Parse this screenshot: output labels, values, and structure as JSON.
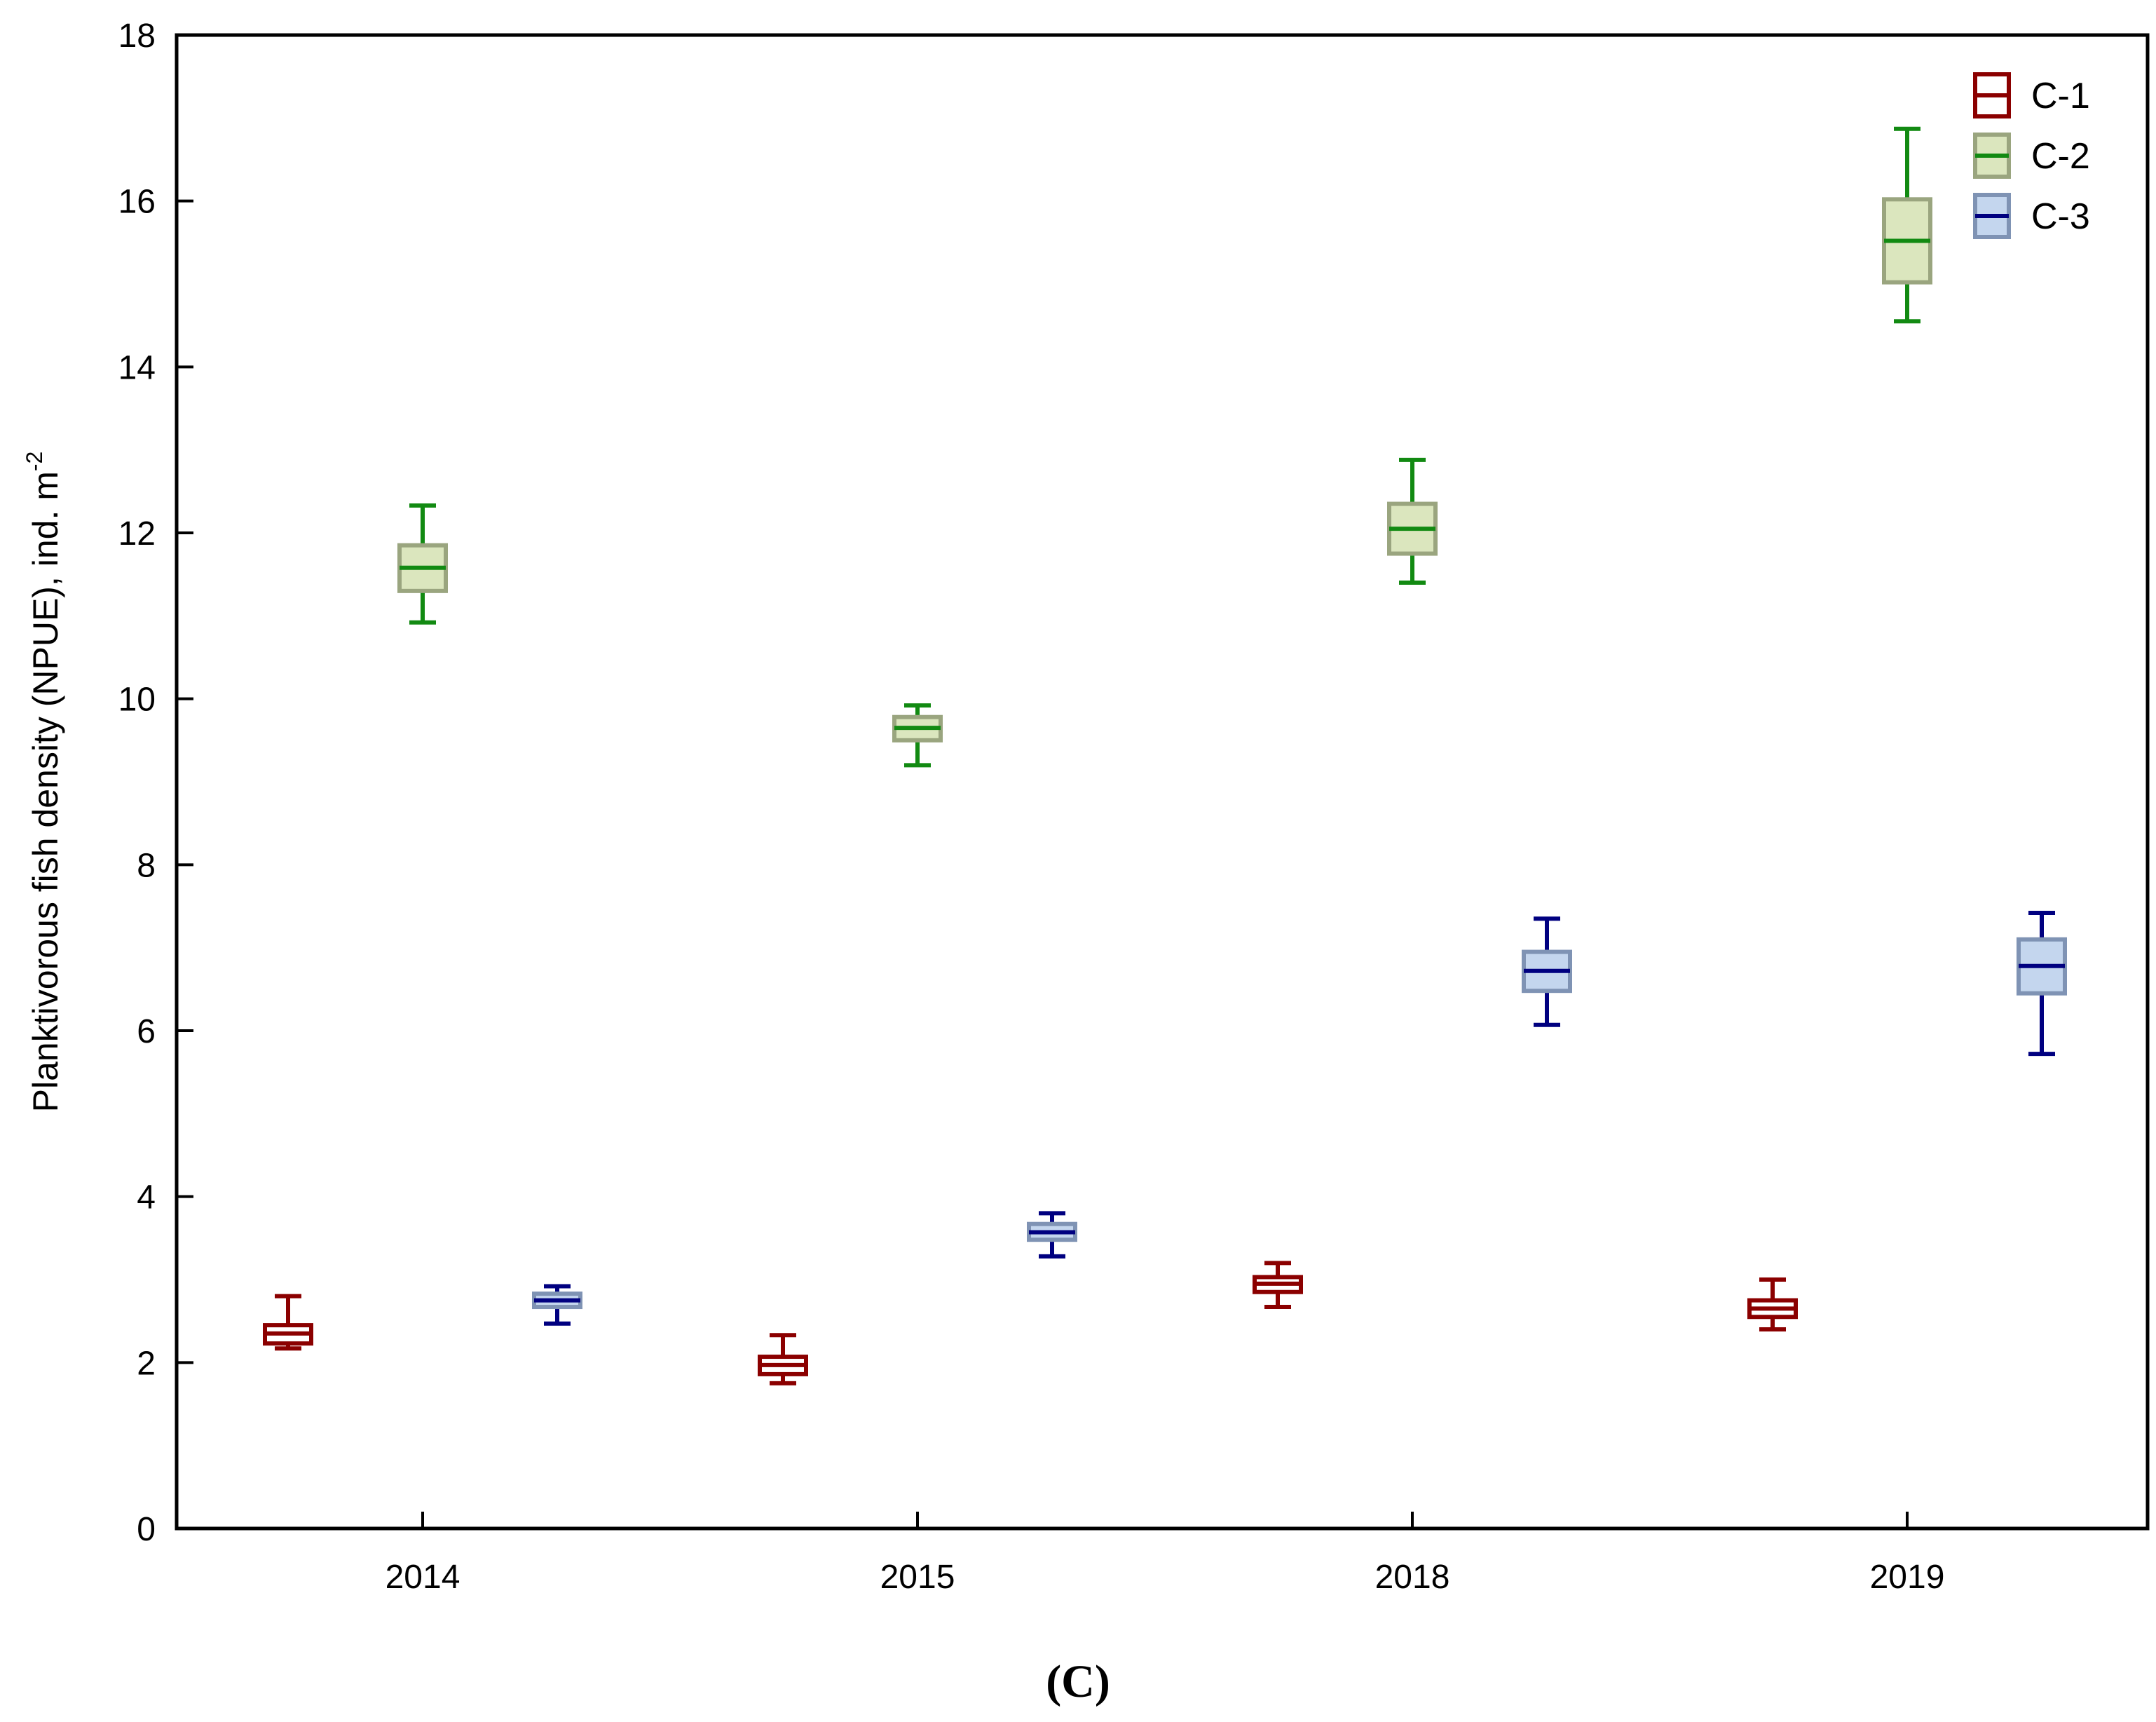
{
  "chart_data": {
    "type": "box",
    "categories": [
      "2014",
      "2015",
      "2018",
      "2019"
    ],
    "ylabel_main": "Planktivorous fish density (NPUE), ind. m",
    "ylabel_sup": "-2",
    "xlabel": "",
    "ylim": [
      0,
      18
    ],
    "yticks": [
      "0",
      "2",
      "4",
      "6",
      "8",
      "10",
      "12",
      "14",
      "16",
      "18"
    ],
    "panel_label": "(C)",
    "legend_position": "top-right",
    "series": [
      {
        "name": "C-1",
        "line_color": "#8b0000",
        "box_stroke": "#8b0000",
        "box_fill": "#ffffff",
        "boxes": [
          {
            "whisker_low": 2.17,
            "q1": 2.23,
            "median": 2.35,
            "q3": 2.45,
            "whisker_high": 2.8
          },
          {
            "whisker_low": 1.75,
            "q1": 1.86,
            "median": 1.97,
            "q3": 2.07,
            "whisker_high": 2.33
          },
          {
            "whisker_low": 2.67,
            "q1": 2.85,
            "median": 2.95,
            "q3": 3.03,
            "whisker_high": 3.2
          },
          {
            "whisker_low": 2.4,
            "q1": 2.55,
            "median": 2.65,
            "q3": 2.75,
            "whisker_high": 3.0
          }
        ]
      },
      {
        "name": "C-2",
        "line_color": "#128a12",
        "box_stroke": "#9aa57f",
        "box_fill": "#dbe6be",
        "boxes": [
          {
            "whisker_low": 10.92,
            "q1": 11.3,
            "median": 11.58,
            "q3": 11.85,
            "whisker_high": 12.33
          },
          {
            "whisker_low": 9.2,
            "q1": 9.5,
            "median": 9.65,
            "q3": 9.78,
            "whisker_high": 9.92
          },
          {
            "whisker_low": 11.4,
            "q1": 11.75,
            "median": 12.05,
            "q3": 12.35,
            "whisker_high": 12.88
          },
          {
            "whisker_low": 14.55,
            "q1": 15.02,
            "median": 15.52,
            "q3": 16.02,
            "whisker_high": 16.87
          }
        ]
      },
      {
        "name": "C-3",
        "line_color": "#000080",
        "box_stroke": "#7f93b4",
        "box_fill": "#c4d6ee",
        "boxes": [
          {
            "whisker_low": 2.47,
            "q1": 2.67,
            "median": 2.75,
            "q3": 2.83,
            "whisker_high": 2.92
          },
          {
            "whisker_low": 3.28,
            "q1": 3.48,
            "median": 3.57,
            "q3": 3.67,
            "whisker_high": 3.8
          },
          {
            "whisker_low": 6.07,
            "q1": 6.48,
            "median": 6.72,
            "q3": 6.95,
            "whisker_high": 7.35
          },
          {
            "whisker_low": 5.72,
            "q1": 6.45,
            "median": 6.78,
            "q3": 7.1,
            "whisker_high": 7.42
          }
        ]
      }
    ]
  }
}
